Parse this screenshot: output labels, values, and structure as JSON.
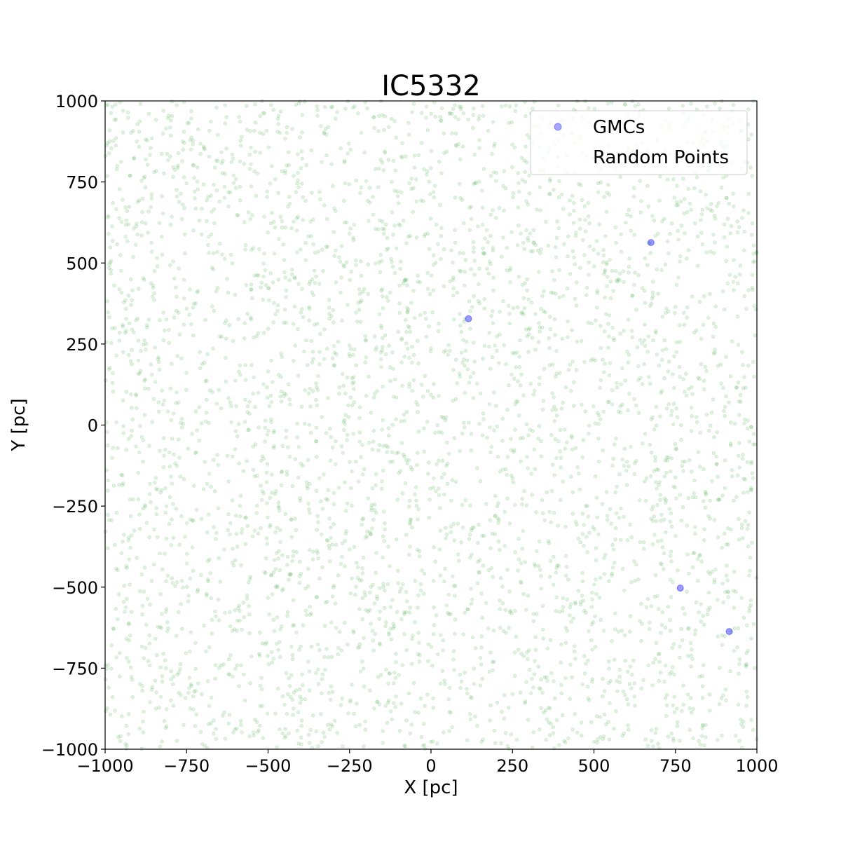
{
  "chart_data": {
    "type": "scatter",
    "title": "IC5332",
    "xlabel": "X [pc]",
    "ylabel": "Y [pc]",
    "xlim": [
      -1000,
      1000
    ],
    "ylim": [
      -1000,
      1000
    ],
    "xticks": [
      -1000,
      -750,
      -500,
      -250,
      0,
      250,
      500,
      750,
      1000
    ],
    "yticks": [
      -1000,
      -750,
      -500,
      -250,
      0,
      250,
      500,
      750,
      1000
    ],
    "xtick_labels": [
      "−1000",
      "−750",
      "−500",
      "−250",
      "0",
      "250",
      "500",
      "750",
      "1000"
    ],
    "ytick_labels": [
      "−1000",
      "−750",
      "−500",
      "−250",
      "0",
      "250",
      "500",
      "750",
      "1000"
    ],
    "grid": false,
    "legend_position": "top-right",
    "series": [
      {
        "name": "GMCs",
        "color": "#0000ff",
        "x": [
          115,
          675,
          765,
          915
        ],
        "y": [
          328,
          563,
          -503,
          -637
        ]
      },
      {
        "name": "Random Points",
        "color": "#2ca02c",
        "count": 4000,
        "distribution": "uniform random over the axis range"
      }
    ]
  }
}
